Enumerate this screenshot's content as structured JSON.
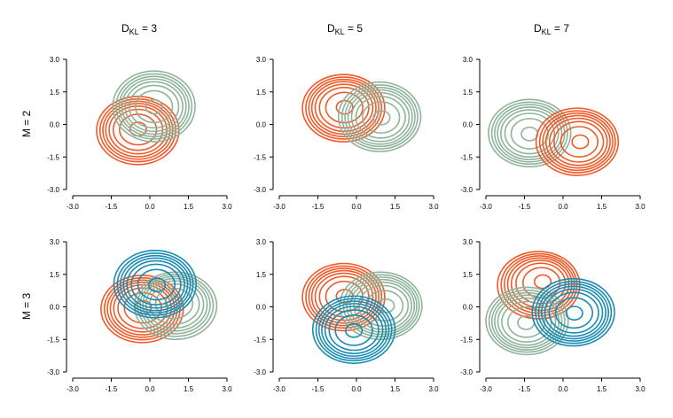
{
  "chart_data": {
    "type": "contour",
    "column_titles": [
      {
        "main": "D",
        "sub": "KL",
        "rest": " = 3"
      },
      {
        "main": "D",
        "sub": "KL",
        "rest": " = 5"
      },
      {
        "main": "D",
        "sub": "KL",
        "rest": " = 7"
      }
    ],
    "row_labels": [
      "M = 2",
      "M = 3"
    ],
    "xlim": [
      -3,
      3
    ],
    "ylim": [
      -3,
      3
    ],
    "ticks": [
      "-3.0",
      "-1.5",
      "0.0",
      "1.5",
      "3.0"
    ],
    "tick_values": [
      -3,
      -1.5,
      0,
      1.5,
      3
    ],
    "colors": {
      "orange": "#f05a28",
      "green": "#8fb39b",
      "blue": "#1a8cb3"
    },
    "contour_levels": [
      0.2,
      0.45,
      0.6,
      0.7,
      0.78,
      0.85,
      0.92,
      1.0
    ],
    "panels": [
      {
        "row": 0,
        "col": 0,
        "components": [
          {
            "color": "orange",
            "center": [
              -0.47,
              -0.28
            ],
            "mode": [
              -0.45,
              -0.2
            ],
            "sx": 1.6,
            "sy": 1.57
          },
          {
            "color": "green",
            "center": [
              0.16,
              0.83
            ],
            "mode": [
              0.16,
              0.81
            ],
            "sx": 1.6,
            "sy": 1.63
          }
        ]
      },
      {
        "row": 0,
        "col": 1,
        "components": [
          {
            "color": "orange",
            "center": [
              -0.5,
              0.75
            ],
            "mode": [
              -0.45,
              0.8
            ],
            "sx": 1.6,
            "sy": 1.55
          },
          {
            "color": "green",
            "center": [
              0.9,
              0.35
            ],
            "mode": [
              1.0,
              0.3
            ],
            "sx": 1.6,
            "sy": 1.6
          }
        ]
      },
      {
        "row": 0,
        "col": 2,
        "components": [
          {
            "color": "green",
            "center": [
              -1.3,
              -0.4
            ],
            "mode": [
              -1.3,
              -0.45
            ],
            "sx": 1.6,
            "sy": 1.55
          },
          {
            "color": "orange",
            "center": [
              0.55,
              -0.8
            ],
            "mode": [
              0.7,
              -0.8
            ],
            "sx": 1.6,
            "sy": 1.55
          }
        ]
      },
      {
        "row": 1,
        "col": 0,
        "components": [
          {
            "color": "orange",
            "center": [
              -0.3,
              -0.1
            ],
            "mode": [
              -0.25,
              0.0
            ],
            "sx": 1.6,
            "sy": 1.55
          },
          {
            "color": "green",
            "center": [
              1.0,
              0.05
            ],
            "mode": [
              0.9,
              0.25
            ],
            "sx": 1.6,
            "sy": 1.55
          },
          {
            "color": "blue",
            "center": [
              0.2,
              1.05
            ],
            "mode": [
              0.3,
              1.0
            ],
            "sx": 1.6,
            "sy": 1.55
          }
        ]
      },
      {
        "row": 1,
        "col": 1,
        "components": [
          {
            "color": "orange",
            "center": [
              -0.5,
              0.45
            ],
            "mode": [
              -0.45,
              0.5
            ],
            "sx": 1.6,
            "sy": 1.55
          },
          {
            "color": "green",
            "center": [
              0.95,
              0.05
            ],
            "mode": [
              1.2,
              0.05
            ],
            "sx": 1.6,
            "sy": 1.55
          },
          {
            "color": "blue",
            "center": [
              -0.1,
              -1.05
            ],
            "mode": [
              -0.1,
              -1.1
            ],
            "sx": 1.6,
            "sy": 1.55
          }
        ]
      },
      {
        "row": 1,
        "col": 2,
        "components": [
          {
            "color": "orange",
            "center": [
              -0.95,
              1.0
            ],
            "mode": [
              -0.75,
              1.2
            ],
            "sx": 1.6,
            "sy": 1.55
          },
          {
            "color": "green",
            "center": [
              -1.4,
              -0.65
            ],
            "mode": [
              -1.45,
              -0.75
            ],
            "sx": 1.6,
            "sy": 1.55
          },
          {
            "color": "blue",
            "center": [
              0.4,
              -0.25
            ],
            "mode": [
              0.45,
              -0.3
            ],
            "sx": 1.6,
            "sy": 1.55
          }
        ]
      }
    ]
  }
}
